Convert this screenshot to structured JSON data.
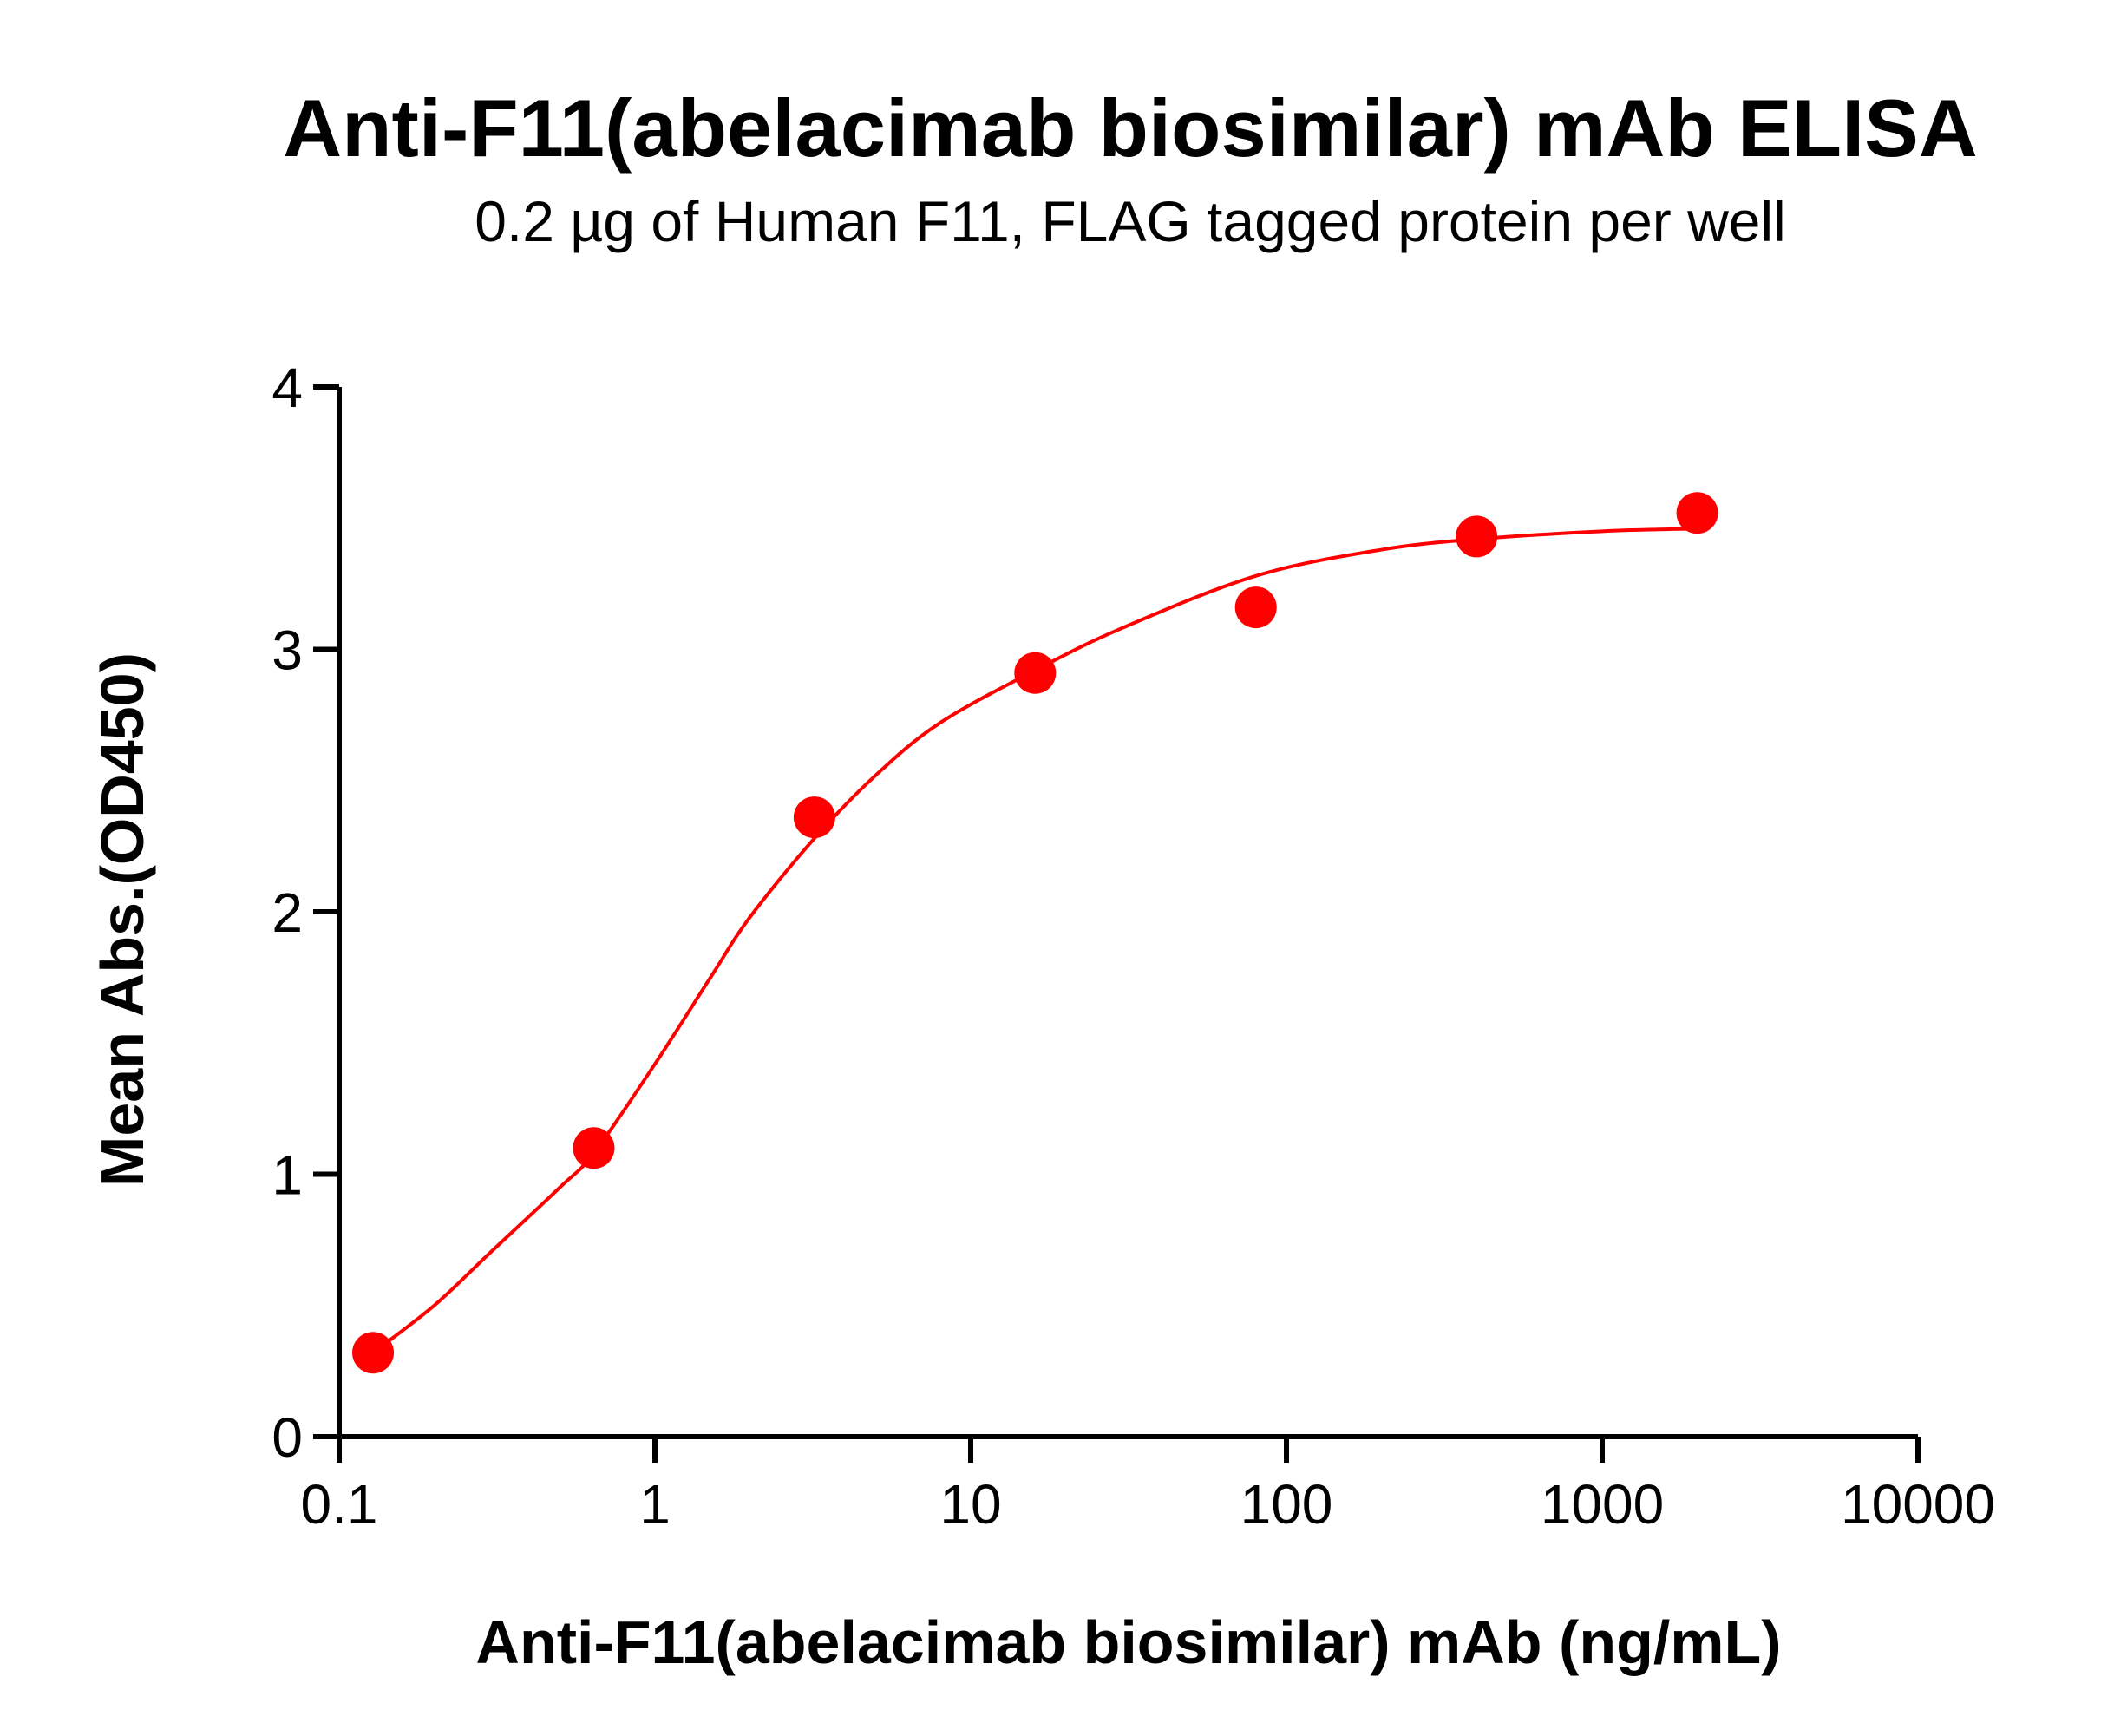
{
  "chart_data": {
    "type": "scatter",
    "title": "Anti-F11(abelacimab biosimilar) mAb ELISA",
    "subtitle": "0.2 µg of Human F11, FLAG tagged protein per well",
    "xlabel": "Anti-F11(abelacimab biosimilar) mAb (ng/mL)",
    "ylabel": "Mean Abs.(OD450)",
    "xscale": "log",
    "xlim": [
      0.1,
      10000
    ],
    "ylim": [
      0,
      4
    ],
    "xticks": [
      "0.1",
      "1",
      "10",
      "100",
      "1000",
      "10000"
    ],
    "yticks": [
      "0",
      "1",
      "2",
      "3",
      "4"
    ],
    "grid": false,
    "color": "#ff0000",
    "series": [
      {
        "points": [
          {
            "x": 0.128,
            "y": 0.32
          },
          {
            "x": 0.64,
            "y": 1.1
          },
          {
            "x": 3.2,
            "y": 2.36
          },
          {
            "x": 16,
            "y": 2.91
          },
          {
            "x": 80,
            "y": 3.16
          },
          {
            "x": 400,
            "y": 3.43
          },
          {
            "x": 2000,
            "y": 3.52
          }
        ],
        "fit_curve": [
          [
            0.128,
            0.32
          ],
          [
            0.2,
            0.5
          ],
          [
            0.3,
            0.7
          ],
          [
            0.5,
            0.95
          ],
          [
            0.64,
            1.08
          ],
          [
            1,
            1.42
          ],
          [
            1.5,
            1.75
          ],
          [
            2,
            1.98
          ],
          [
            3.2,
            2.28
          ],
          [
            5,
            2.52
          ],
          [
            8,
            2.72
          ],
          [
            16,
            2.92
          ],
          [
            30,
            3.08
          ],
          [
            80,
            3.28
          ],
          [
            200,
            3.38
          ],
          [
            400,
            3.42
          ],
          [
            1000,
            3.45
          ],
          [
            2000,
            3.46
          ]
        ]
      }
    ]
  }
}
